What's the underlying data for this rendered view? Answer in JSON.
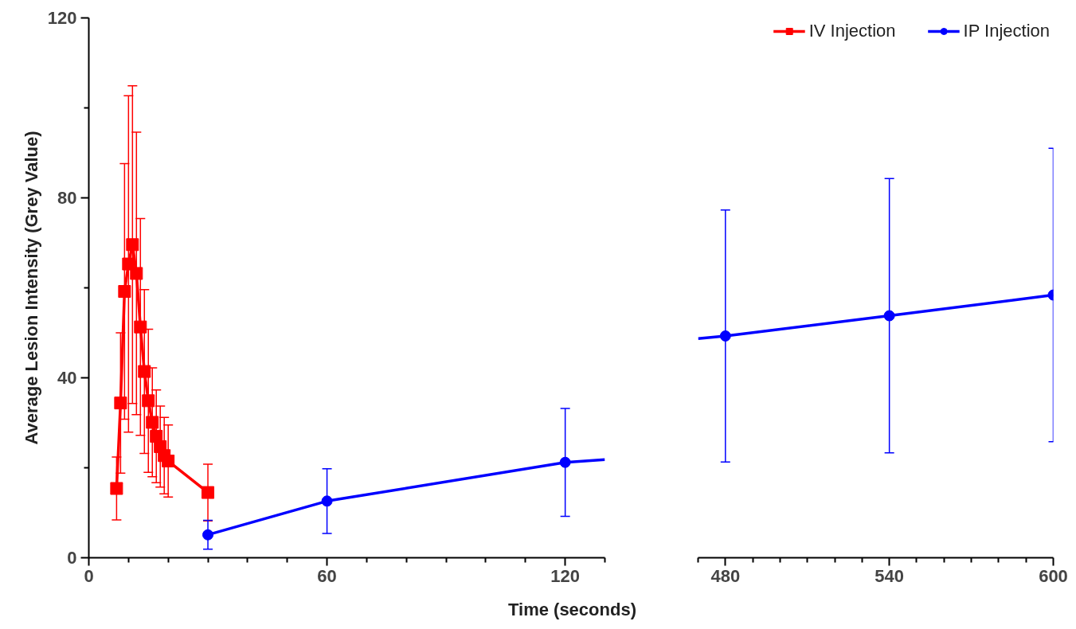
{
  "chart_data": [
    {
      "type": "line",
      "xlabel": "Time (seconds)",
      "ylabel": "Average Lesion Intensity (Grey Value)",
      "xlim": [
        0,
        130
      ],
      "ylim": [
        0,
        120
      ],
      "xticks": [
        0,
        {
          "value": 10,
          "label": null
        },
        {
          "value": 20,
          "label": null
        },
        {
          "value": 30,
          "label": null
        },
        {
          "value": 40,
          "label": null
        },
        {
          "value": 50,
          "label": null
        },
        60,
        {
          "value": 70,
          "label": null
        },
        {
          "value": 80,
          "label": null
        },
        {
          "value": 90,
          "label": null
        },
        {
          "value": 100,
          "label": null
        },
        {
          "value": 110,
          "label": null
        },
        120,
        {
          "value": 130,
          "label": null
        }
      ],
      "yticks": [
        0,
        {
          "value": 20,
          "label": null
        },
        40,
        {
          "value": 60,
          "label": null
        },
        80,
        {
          "value": 100,
          "label": null
        },
        120
      ],
      "grid": false,
      "legend": "top right",
      "line_style": "solid",
      "series": [
        {
          "name": "IV Injection",
          "color": "#ff0000",
          "marker": "square",
          "x": [
            7,
            8,
            9,
            10,
            11,
            12,
            13,
            14,
            15,
            16,
            17,
            18,
            19,
            20,
            30
          ],
          "values": [
            15.4,
            34.4,
            59.2,
            65.3,
            69.6,
            63.2,
            51.3,
            41.4,
            34.9,
            30.1,
            27.0,
            24.7,
            22.7,
            21.5,
            14.5
          ],
          "errors": [
            7,
            15.6,
            28.4,
            37.4,
            35.3,
            31.4,
            24.1,
            18.2,
            15.9,
            12.1,
            10.3,
            9,
            8.5,
            8,
            6.3
          ]
        },
        {
          "name": "IP Injection",
          "color": "#0000ff",
          "marker": "circle",
          "x": [
            30,
            60,
            120
          ],
          "values": [
            5.1,
            12.6,
            21.2
          ],
          "errors": [
            3.2,
            7.2,
            12
          ]
        },
        {
          "color": "#0000ff",
          "x": [
            120,
            130
          ],
          "values": [
            21.2,
            21.8
          ]
        }
      ]
    },
    {
      "type": "line",
      "xlim": [
        470,
        600
      ],
      "ylim": [
        0,
        120
      ],
      "tick_labels": "x",
      "grid": false,
      "line_style": "solid",
      "xticks": [
        {
          "value": 470,
          "label": null
        },
        480,
        {
          "value": 490,
          "label": null
        },
        {
          "value": 500,
          "label": null
        },
        {
          "value": 510,
          "label": null
        },
        {
          "value": 520,
          "label": null
        },
        {
          "value": 530,
          "label": null
        },
        540,
        {
          "value": 550,
          "label": null
        },
        {
          "value": 560,
          "label": null
        },
        {
          "value": 570,
          "label": null
        },
        {
          "value": 580,
          "label": null
        },
        {
          "value": 590,
          "label": null
        },
        600
      ],
      "series": [
        {
          "color": "#0000ff",
          "x": [
            470,
            480
          ],
          "values": [
            48.7,
            49.3
          ]
        },
        {
          "color": "#0000ff",
          "marker": "circle",
          "x": [
            480,
            540,
            600
          ],
          "values": [
            49.3,
            53.8,
            58.4
          ],
          "errors": [
            28,
            30.5,
            32.6
          ]
        }
      ]
    }
  ]
}
